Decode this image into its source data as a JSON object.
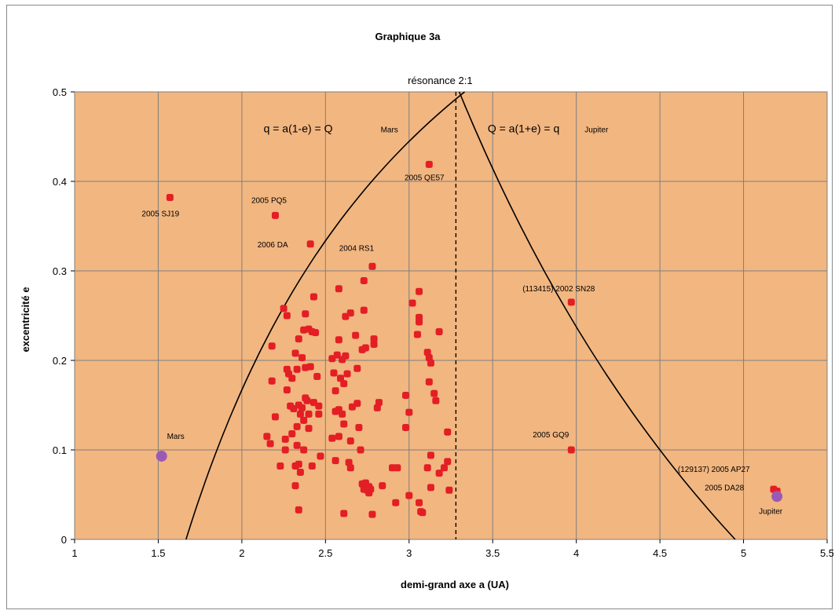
{
  "chart_data": {
    "type": "scatter",
    "title": "Graphique 3a",
    "xlabel": "demi-grand axe a (UA)",
    "ylabel": "excentricité e",
    "xlim": [
      1,
      5.5
    ],
    "ylim": [
      0,
      0.5
    ],
    "xticks": [
      "1",
      "1.5",
      "2",
      "2.5",
      "3",
      "3.5",
      "4",
      "4.5",
      "5",
      "5.5"
    ],
    "yticks": [
      "0",
      "0.1",
      "0.2",
      "0.3",
      "0.4",
      "0.5"
    ],
    "grid": true,
    "colors": {
      "plot_bg": "#f2b680",
      "asteroid": "#e31e24",
      "planet": "#9b59b6",
      "grid": "#7f7f7f"
    },
    "annotations": {
      "resonance": "résonance 2:1",
      "eq_left": "q = a(1-e) = Q",
      "eq_left_sub": "Mars",
      "eq_right": "Q = a(1+e) = q",
      "eq_right_sub": "Jupiter"
    },
    "labeled_asteroids": [
      {
        "name": "2005 SJ19",
        "x": 1.57,
        "y": 0.382
      },
      {
        "name": "2005 PQ5",
        "x": 2.2,
        "y": 0.362
      },
      {
        "name": "2006 DA",
        "x": 2.41,
        "y": 0.33
      },
      {
        "name": "2004 RS1",
        "x": 2.78,
        "y": 0.305
      },
      {
        "name": "2005 QE57",
        "x": 3.12,
        "y": 0.419
      },
      {
        "name": "(113415) 2002 SN28",
        "x": 3.97,
        "y": 0.265
      },
      {
        "name": "2005 GQ9",
        "x": 3.97,
        "y": 0.1
      },
      {
        "name": "(129137) 2005 AP27",
        "x": 5.18,
        "y": 0.056
      },
      {
        "name": "2005 DA28",
        "x": 5.2,
        "y": 0.054
      }
    ],
    "planets": [
      {
        "name": "Mars",
        "x": 1.52,
        "y": 0.093
      },
      {
        "name": "Jupiter",
        "x": 5.2,
        "y": 0.048
      }
    ],
    "asteroids": [
      [
        2.25,
        0.258
      ],
      [
        2.27,
        0.25
      ],
      [
        2.18,
        0.216
      ],
      [
        2.32,
        0.208
      ],
      [
        2.34,
        0.224
      ],
      [
        2.37,
        0.234
      ],
      [
        2.4,
        0.235
      ],
      [
        2.42,
        0.232
      ],
      [
        2.44,
        0.231
      ],
      [
        2.38,
        0.252
      ],
      [
        2.43,
        0.271
      ],
      [
        2.27,
        0.19
      ],
      [
        2.28,
        0.185
      ],
      [
        2.3,
        0.18
      ],
      [
        2.33,
        0.19
      ],
      [
        2.36,
        0.203
      ],
      [
        2.38,
        0.192
      ],
      [
        2.41,
        0.193
      ],
      [
        2.45,
        0.182
      ],
      [
        2.27,
        0.167
      ],
      [
        2.18,
        0.177
      ],
      [
        2.29,
        0.149
      ],
      [
        2.31,
        0.146
      ],
      [
        2.34,
        0.15
      ],
      [
        2.36,
        0.147
      ],
      [
        2.38,
        0.158
      ],
      [
        2.39,
        0.155
      ],
      [
        2.43,
        0.153
      ],
      [
        2.46,
        0.149
      ],
      [
        2.35,
        0.14
      ],
      [
        2.37,
        0.133
      ],
      [
        2.4,
        0.14
      ],
      [
        2.46,
        0.14
      ],
      [
        2.2,
        0.137
      ],
      [
        2.33,
        0.126
      ],
      [
        2.4,
        0.124
      ],
      [
        2.3,
        0.118
      ],
      [
        2.26,
        0.112
      ],
      [
        2.15,
        0.115
      ],
      [
        2.17,
        0.107
      ],
      [
        2.33,
        0.105
      ],
      [
        2.26,
        0.1
      ],
      [
        2.37,
        0.1
      ],
      [
        2.47,
        0.093
      ],
      [
        2.23,
        0.082
      ],
      [
        2.32,
        0.082
      ],
      [
        2.34,
        0.084
      ],
      [
        2.42,
        0.082
      ],
      [
        2.35,
        0.075
      ],
      [
        2.32,
        0.06
      ],
      [
        2.34,
        0.033
      ],
      [
        2.54,
        0.202
      ],
      [
        2.57,
        0.206
      ],
      [
        2.55,
        0.186
      ],
      [
        2.6,
        0.201
      ],
      [
        2.62,
        0.205
      ],
      [
        2.59,
        0.18
      ],
      [
        2.63,
        0.185
      ],
      [
        2.56,
        0.166
      ],
      [
        2.61,
        0.174
      ],
      [
        2.69,
        0.191
      ],
      [
        2.72,
        0.212
      ],
      [
        2.74,
        0.214
      ],
      [
        2.58,
        0.223
      ],
      [
        2.62,
        0.249
      ],
      [
        2.65,
        0.253
      ],
      [
        2.68,
        0.228
      ],
      [
        2.73,
        0.256
      ],
      [
        2.58,
        0.28
      ],
      [
        2.73,
        0.289
      ],
      [
        2.58,
        0.145
      ],
      [
        2.6,
        0.14
      ],
      [
        2.66,
        0.148
      ],
      [
        2.69,
        0.152
      ],
      [
        2.61,
        0.129
      ],
      [
        2.56,
        0.143
      ],
      [
        2.7,
        0.125
      ],
      [
        2.58,
        0.115
      ],
      [
        2.54,
        0.113
      ],
      [
        2.65,
        0.11
      ],
      [
        2.71,
        0.1
      ],
      [
        2.56,
        0.088
      ],
      [
        2.64,
        0.086
      ],
      [
        2.65,
        0.08
      ],
      [
        2.72,
        0.062
      ],
      [
        2.74,
        0.059
      ],
      [
        2.75,
        0.055
      ],
      [
        2.73,
        0.056
      ],
      [
        2.76,
        0.052
      ],
      [
        2.77,
        0.056
      ],
      [
        2.74,
        0.063
      ],
      [
        2.61,
        0.029
      ],
      [
        2.78,
        0.028
      ],
      [
        2.84,
        0.06
      ],
      [
        2.79,
        0.224
      ],
      [
        2.79,
        0.218
      ],
      [
        2.82,
        0.153
      ],
      [
        2.81,
        0.147
      ],
      [
        2.76,
        0.059
      ],
      [
        3.06,
        0.277
      ],
      [
        3.02,
        0.264
      ],
      [
        3.06,
        0.248
      ],
      [
        3.06,
        0.243
      ],
      [
        3.05,
        0.229
      ],
      [
        3.18,
        0.232
      ],
      [
        3.11,
        0.209
      ],
      [
        3.12,
        0.203
      ],
      [
        3.13,
        0.197
      ],
      [
        3.12,
        0.176
      ],
      [
        3.15,
        0.163
      ],
      [
        3.16,
        0.155
      ],
      [
        2.98,
        0.161
      ],
      [
        3.0,
        0.142
      ],
      [
        2.98,
        0.125
      ],
      [
        3.23,
        0.12
      ],
      [
        3.13,
        0.094
      ],
      [
        3.23,
        0.087
      ],
      [
        3.11,
        0.08
      ],
      [
        3.18,
        0.074
      ],
      [
        3.21,
        0.08
      ],
      [
        2.9,
        0.08
      ],
      [
        2.93,
        0.08
      ],
      [
        3.24,
        0.055
      ],
      [
        3.13,
        0.058
      ],
      [
        3.0,
        0.049
      ],
      [
        3.06,
        0.041
      ],
      [
        2.92,
        0.041
      ],
      [
        3.08,
        0.03
      ],
      [
        3.07,
        0.031
      ]
    ]
  }
}
